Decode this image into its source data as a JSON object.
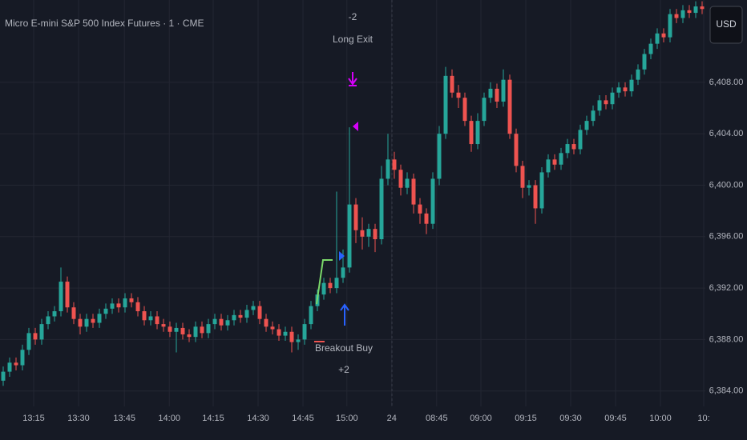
{
  "chart_data": {
    "type": "candlestick",
    "title": "Micro E-mini S&P 500 Index Futures · 1 · CME",
    "currency": "USD",
    "up_color": "#26a69a",
    "down_color": "#ef5350",
    "grid": true,
    "annotations": [
      "-2",
      "Long Exit",
      "Breakout Buy",
      "+2"
    ],
    "open": [
      6384.8,
      6385.5,
      6386.2,
      6386.0,
      6387.2,
      6388.5,
      6388.0,
      6389.2,
      6389.8,
      6390.2,
      6392.5,
      6390.5,
      6389.6,
      6389.0,
      6389.6,
      6389.3,
      6390.0,
      6390.4,
      6390.8,
      6390.5,
      6391.2,
      6390.9,
      6390.2,
      6389.5,
      6389.8,
      6389.2,
      6389.0,
      6388.6,
      6388.9,
      6388.4,
      6388.2,
      6389.0,
      6388.5,
      6389.2,
      6389.6,
      6389.1,
      6389.5,
      6389.9,
      6389.7,
      6390.3,
      6390.6,
      6389.6,
      6389.0,
      6388.8,
      6388.3,
      6388.6,
      6387.8,
      6388.0,
      6389.2,
      6390.6,
      6391.5,
      6392.4,
      6392.0,
      6392.8,
      6393.6,
      6398.5,
      6396.5,
      6396.0,
      6396.6,
      6395.8,
      6400.5,
      6402.0,
      6401.2,
      6399.8,
      6400.5,
      6398.5,
      6397.8,
      6397.0,
      6400.5,
      6404.0,
      6408.5,
      6407.2,
      6406.8,
      6405.0,
      6403.2,
      6405.0,
      6406.8,
      6407.5,
      6406.5,
      6408.2,
      6404.0,
      6401.5,
      6399.8,
      6400.0,
      6398.2,
      6401.0,
      6402.0,
      6401.6,
      6402.5,
      6403.2,
      6402.8,
      6404.3,
      6405.0,
      6405.8,
      6406.6,
      6406.3,
      6407.2,
      6407.6,
      6407.3,
      6408.2,
      6409.0,
      6410.2,
      6411.0,
      6411.8,
      6411.5,
      6413.3,
      6413.0,
      6413.6,
      6413.4,
      6413.9
    ],
    "high": [
      6385.9,
      6386.6,
      6386.6,
      6387.6,
      6388.9,
      6388.9,
      6389.6,
      6390.2,
      6390.6,
      6393.6,
      6392.9,
      6390.9,
      6390.0,
      6390.0,
      6390.0,
      6390.4,
      6390.8,
      6391.2,
      6391.2,
      6391.6,
      6391.6,
      6391.3,
      6390.6,
      6390.2,
      6390.2,
      6389.6,
      6389.4,
      6389.3,
      6389.3,
      6388.8,
      6389.4,
      6389.4,
      6389.6,
      6390.0,
      6390.0,
      6389.9,
      6390.3,
      6390.3,
      6390.7,
      6391.0,
      6391.0,
      6390.0,
      6389.4,
      6389.2,
      6389.0,
      6389.0,
      6388.4,
      6389.6,
      6391.0,
      6391.9,
      6392.8,
      6392.8,
      6399.5,
      6395.0,
      6404.5,
      6399.0,
      6397.5,
      6397.0,
      6397.0,
      6401.5,
      6404.0,
      6402.6,
      6401.6,
      6401.0,
      6400.9,
      6399.0,
      6398.2,
      6401.0,
      6404.6,
      6409.2,
      6409.0,
      6407.8,
      6407.2,
      6405.4,
      6405.6,
      6407.2,
      6408.0,
      6407.9,
      6409.0,
      6408.6,
      6404.4,
      6401.9,
      6400.4,
      6400.4,
      6401.4,
      6402.4,
      6402.4,
      6402.9,
      6403.6,
      6403.6,
      6404.7,
      6405.4,
      6406.2,
      6407.0,
      6407.0,
      6407.6,
      6408.0,
      6408.0,
      6408.6,
      6409.4,
      6410.6,
      6411.4,
      6412.2,
      6412.2,
      6413.7,
      6413.7,
      6414.0,
      6414.0,
      6414.3,
      6414.3
    ],
    "low": [
      6384.4,
      6385.1,
      6385.6,
      6385.6,
      6386.8,
      6387.6,
      6387.6,
      6388.8,
      6389.4,
      6389.8,
      6390.1,
      6389.2,
      6388.4,
      6388.6,
      6388.9,
      6388.9,
      6389.6,
      6390.0,
      6390.1,
      6390.1,
      6390.5,
      6389.8,
      6389.1,
      6389.1,
      6388.8,
      6388.6,
      6388.2,
      6387.0,
      6388.0,
      6387.8,
      6387.8,
      6388.1,
      6388.1,
      6388.8,
      6388.7,
      6388.7,
      6389.1,
      6389.3,
      6389.3,
      6389.9,
      6389.2,
      6388.6,
      6388.4,
      6387.9,
      6387.9,
      6387.0,
      6387.2,
      6387.6,
      6388.8,
      6390.2,
      6391.1,
      6391.6,
      6391.6,
      6392.4,
      6393.2,
      6395.5,
      6395.0,
      6395.2,
      6394.8,
      6395.4,
      6400.0,
      6400.5,
      6399.2,
      6399.3,
      6397.8,
      6397.0,
      6396.2,
      6396.6,
      6400.0,
      6403.6,
      6406.8,
      6406.0,
      6404.6,
      6402.6,
      6402.8,
      6404.6,
      6406.4,
      6406.0,
      6406.1,
      6403.6,
      6401.0,
      6399.0,
      6399.2,
      6397.0,
      6397.8,
      6400.6,
      6401.2,
      6401.2,
      6402.1,
      6402.4,
      6402.4,
      6403.9,
      6404.6,
      6405.4,
      6405.9,
      6405.9,
      6406.8,
      6406.9,
      6406.9,
      6407.8,
      6408.6,
      6409.8,
      6410.6,
      6411.1,
      6411.1,
      6412.6,
      6412.6,
      6413.0,
      6413.0,
      6413.3
    ],
    "close": [
      6385.5,
      6386.2,
      6386.0,
      6387.2,
      6388.5,
      6388.0,
      6389.2,
      6389.8,
      6390.2,
      6392.5,
      6390.5,
      6389.6,
      6389.0,
      6389.6,
      6389.3,
      6390.0,
      6390.4,
      6390.8,
      6390.5,
      6391.2,
      6390.9,
      6390.2,
      6389.5,
      6389.8,
      6389.2,
      6389.0,
      6388.6,
      6388.9,
      6388.4,
      6388.2,
      6389.0,
      6388.5,
      6389.2,
      6389.6,
      6389.1,
      6389.5,
      6389.9,
      6389.7,
      6390.3,
      6390.6,
      6389.6,
      6389.0,
      6388.8,
      6388.3,
      6388.6,
      6387.8,
      6388.0,
      6389.2,
      6390.6,
      6391.5,
      6392.4,
      6392.0,
      6392.8,
      6393.6,
      6398.5,
      6396.5,
      6396.0,
      6396.6,
      6395.8,
      6400.5,
      6402.0,
      6401.2,
      6399.8,
      6400.5,
      6398.5,
      6397.8,
      6397.0,
      6400.5,
      6404.0,
      6408.5,
      6407.2,
      6406.8,
      6405.0,
      6403.2,
      6405.0,
      6406.8,
      6407.5,
      6406.5,
      6408.2,
      6404.0,
      6401.5,
      6399.8,
      6400.0,
      6398.2,
      6401.0,
      6402.0,
      6401.6,
      6402.5,
      6403.2,
      6402.8,
      6404.3,
      6405.0,
      6405.8,
      6406.6,
      6406.3,
      6407.2,
      6407.6,
      6407.3,
      6408.2,
      6409.0,
      6410.2,
      6411.0,
      6411.8,
      6411.5,
      6413.3,
      6413.0,
      6413.6,
      6413.4,
      6413.9,
      6413.7
    ],
    "xlim": [
      -0.5,
      109.5
    ],
    "xticks": [
      {
        "value": 4.75,
        "label": "13:15"
      },
      {
        "value": 11.75,
        "label": "13:30"
      },
      {
        "value": 18.9,
        "label": "13:45"
      },
      {
        "value": 25.9,
        "label": "14:00"
      },
      {
        "value": 32.75,
        "label": "14:15"
      },
      {
        "value": 39.75,
        "label": "14:30"
      },
      {
        "value": 46.75,
        "label": "14:45"
      },
      {
        "value": 53.6,
        "label": "15:00"
      },
      {
        "value": 60.6,
        "label": "24"
      },
      {
        "value": 67.6,
        "label": "08:45"
      },
      {
        "value": 74.5,
        "label": "09:00"
      },
      {
        "value": 81.5,
        "label": "09:15"
      },
      {
        "value": 88.5,
        "label": "09:30"
      },
      {
        "value": 95.5,
        "label": "09:45"
      },
      {
        "value": 102.5,
        "label": "10:00"
      },
      {
        "value": 109.25,
        "label": "10:"
      }
    ],
    "ylim": [
      6382.8,
      6414.4
    ],
    "yticks": [
      {
        "value": 6384,
        "label": "6,384.00"
      },
      {
        "value": 6388,
        "label": "6,388.00"
      },
      {
        "value": 6392,
        "label": "6,392.00"
      },
      {
        "value": 6396,
        "label": "6,396.00"
      },
      {
        "value": 6400,
        "label": "6,400.00"
      },
      {
        "value": 6404,
        "label": "6,404.00"
      },
      {
        "value": 6408,
        "label": "6,408.00"
      }
    ]
  }
}
